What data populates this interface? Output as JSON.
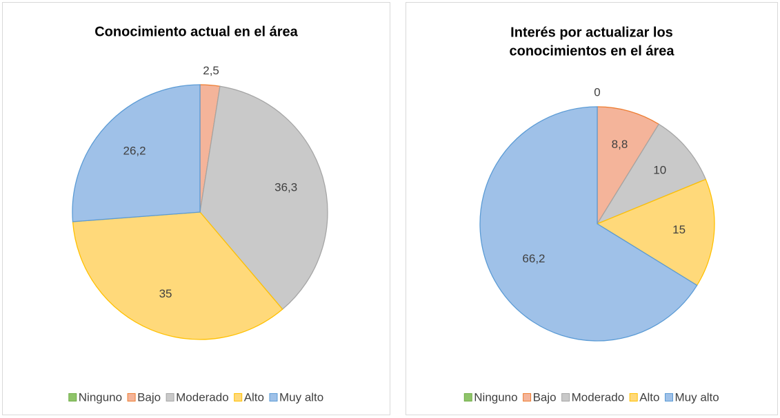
{
  "chart_data": [
    {
      "type": "pie",
      "title": [
        "Conocimiento actual en el área"
      ],
      "categories": [
        "Ninguno",
        "Bajo",
        "Moderado",
        "Alto",
        "Muy alto"
      ],
      "values": [
        0,
        2.5,
        36.3,
        35,
        26.2
      ],
      "value_labels": [
        null,
        "2,5",
        "36,3",
        "35",
        "26,2"
      ],
      "colors": [
        "#8fc46a",
        "#f4b49a",
        "#c9c9c9",
        "#ffd97a",
        "#9fc1e8"
      ],
      "legend": "bottom"
    },
    {
      "type": "pie",
      "title": [
        "Interés por actualizar los",
        "conocimientos en el área"
      ],
      "categories": [
        "Ninguno",
        "Bajo",
        "Moderado",
        "Alto",
        "Muy alto"
      ],
      "values": [
        0,
        8.8,
        10,
        15,
        66.2
      ],
      "value_labels": [
        "0",
        "8,8",
        "10",
        "15",
        "66,2"
      ],
      "colors": [
        "#8fc46a",
        "#f4b49a",
        "#c9c9c9",
        "#ffd97a",
        "#9fc1e8"
      ],
      "legend": "bottom"
    }
  ]
}
